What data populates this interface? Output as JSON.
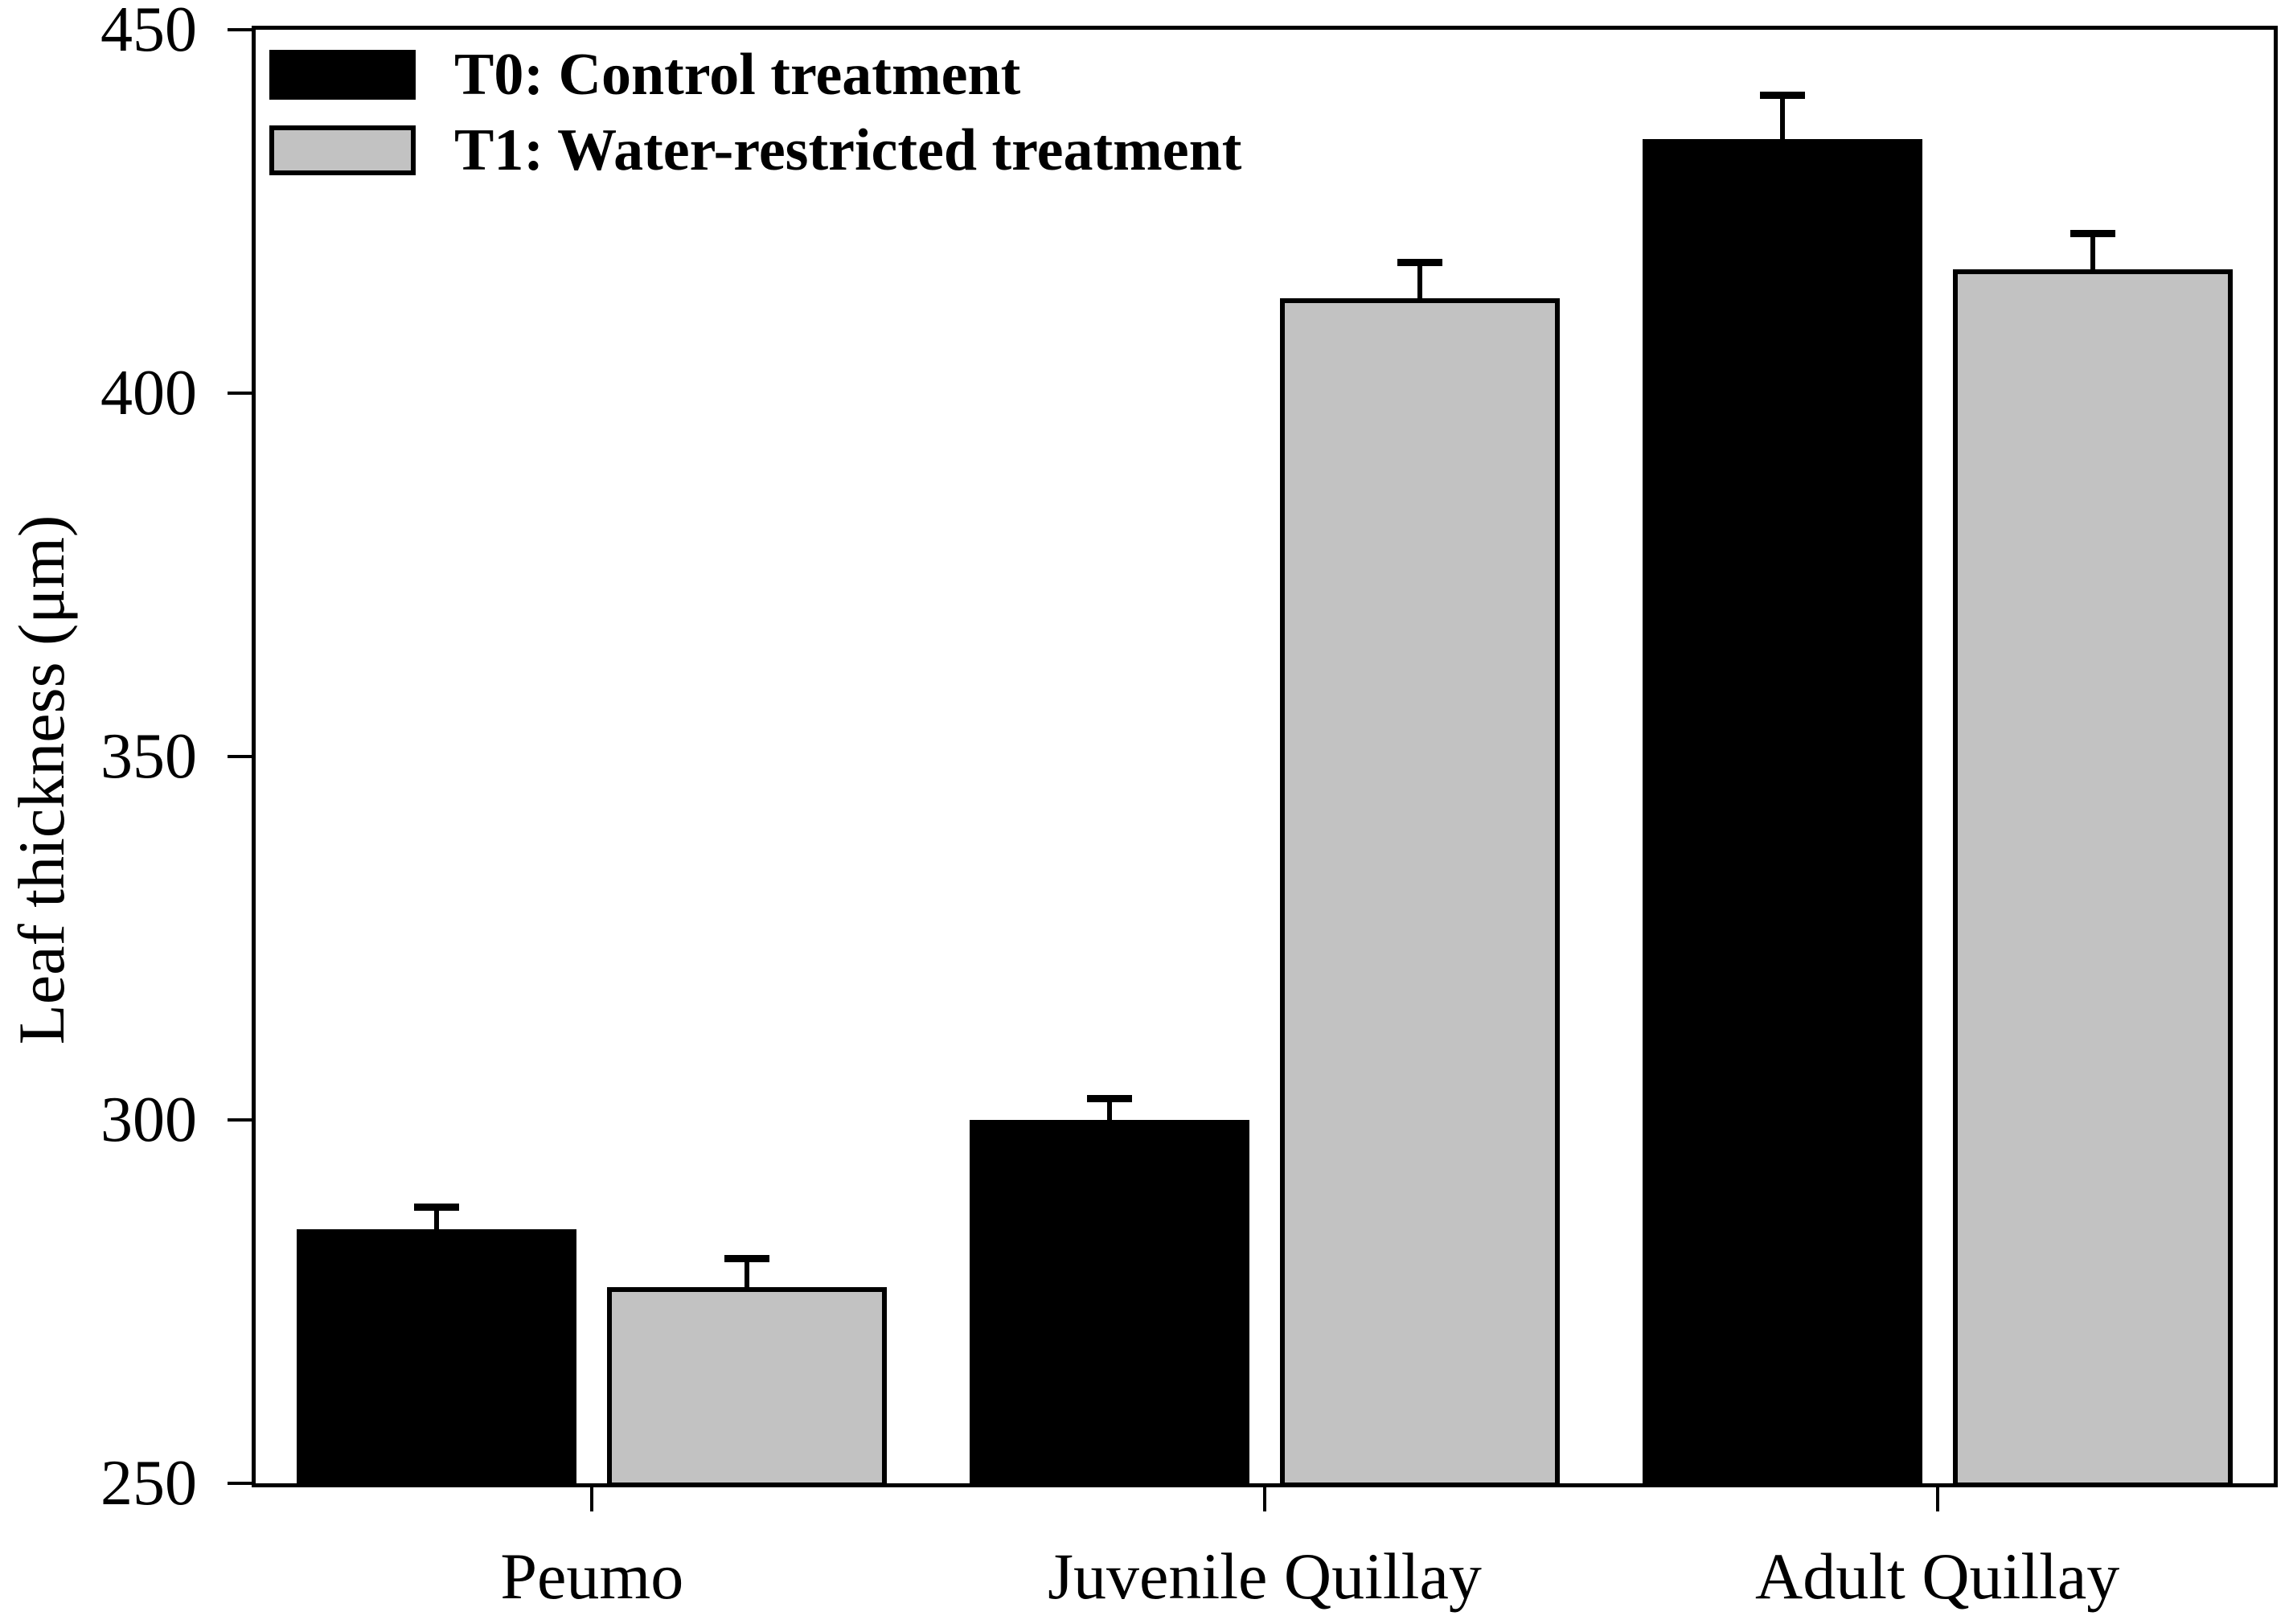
{
  "chart_data": {
    "type": "bar",
    "title": "",
    "categories": [
      "Peumo",
      "Juvenile Quillay",
      "Adult Quillay"
    ],
    "series": [
      {
        "name": "T0: Control treatment",
        "color": "#000000",
        "values": [
          285,
          300,
          435
        ],
        "errors_plus": [
          3,
          3,
          6
        ]
      },
      {
        "name": "T1: Water-restricted treatment",
        "color": "#c2c2c2",
        "values": [
          277,
          413,
          417
        ],
        "errors_plus": [
          4,
          5,
          5
        ]
      }
    ],
    "xlabel": "",
    "ylabel": "Leaf thickness (μm)",
    "ylim": [
      250,
      450
    ],
    "yticks": [
      450,
      400,
      350,
      300,
      250
    ],
    "grid": false,
    "legend_position": "upper-left",
    "error_bars": "upper-only",
    "axis_color": "#000000",
    "background_color": "#ffffff"
  }
}
